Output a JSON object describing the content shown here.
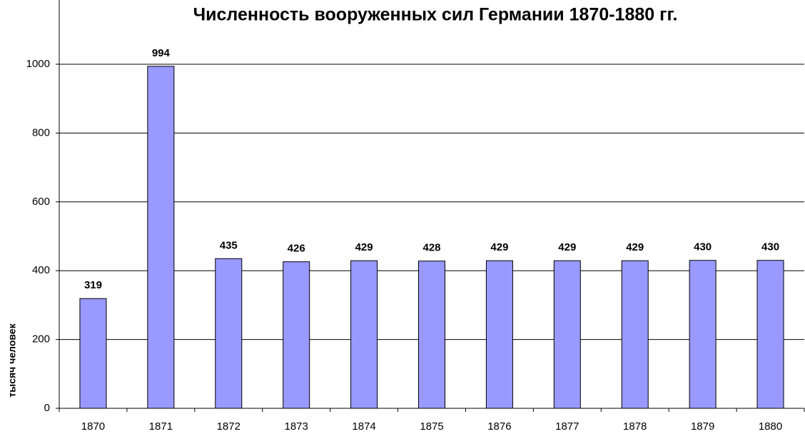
{
  "chart_data": {
    "type": "bar",
    "title": "Численность вооруженных сил Германии 1870-1880 гг.",
    "y_label": "тысяч человек",
    "categories": [
      "1870",
      "1871",
      "1872",
      "1873",
      "1874",
      "1875",
      "1876",
      "1877",
      "1878",
      "1879",
      "1880"
    ],
    "values": [
      319,
      994,
      435,
      426,
      429,
      428,
      429,
      429,
      429,
      430,
      430
    ],
    "color": "#9999ff",
    "ylim": [
      0,
      1200
    ],
    "yticks": [
      0,
      200,
      400,
      600,
      800,
      1000
    ],
    "grid": true
  }
}
